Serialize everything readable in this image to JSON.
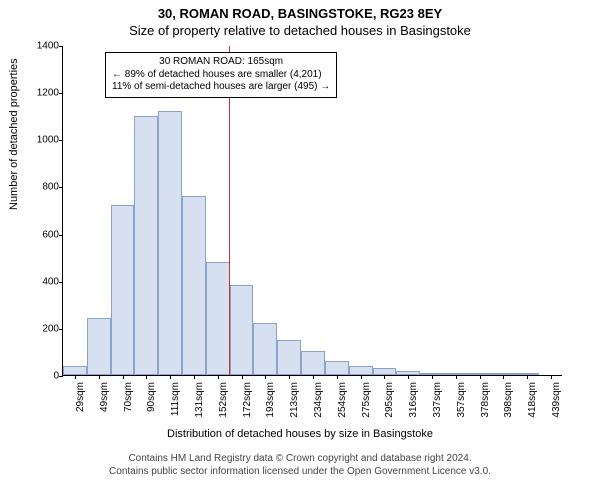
{
  "title_line1": "30, ROMAN ROAD, BASINGSTOKE, RG23 8EY",
  "title_line2": "Size of property relative to detached houses in Basingstoke",
  "ylabel": "Number of detached properties",
  "xlabel": "Distribution of detached houses by size in Basingstoke",
  "footer_line1": "Contains HM Land Registry data © Crown copyright and database right 2024.",
  "footer_line2": "Contains public sector information licensed under the Open Government Licence v3.0.",
  "annotation": {
    "line1": "30 ROMAN ROAD: 165sqm",
    "line2": "← 89% of detached houses are smaller (4,201)",
    "line3": "11% of semi-detached houses are larger (495) →"
  },
  "chart": {
    "type": "histogram",
    "ylim": [
      0,
      1400
    ],
    "ytick_step": 200,
    "yticks": [
      0,
      200,
      400,
      600,
      800,
      1000,
      1200,
      1400
    ],
    "xticks": [
      "29sqm",
      "49sqm",
      "70sqm",
      "90sqm",
      "111sqm",
      "131sqm",
      "152sqm",
      "172sqm",
      "193sqm",
      "213sqm",
      "234sqm",
      "254sqm",
      "275sqm",
      "295sqm",
      "316sqm",
      "337sqm",
      "357sqm",
      "378sqm",
      "398sqm",
      "418sqm",
      "439sqm"
    ],
    "values": [
      40,
      240,
      720,
      1100,
      1120,
      760,
      480,
      380,
      220,
      150,
      100,
      60,
      40,
      30,
      15,
      10,
      10,
      5,
      5,
      5,
      0
    ],
    "bar_fill": "#d6e0f0",
    "bar_border": "#8aa3c8",
    "marker_color": "#c83232",
    "marker_x_value": 165,
    "x_min": 29,
    "x_max": 439,
    "background_color": "#ffffff",
    "title_fontsize": 13,
    "label_fontsize": 11,
    "tick_fontsize": 10
  }
}
